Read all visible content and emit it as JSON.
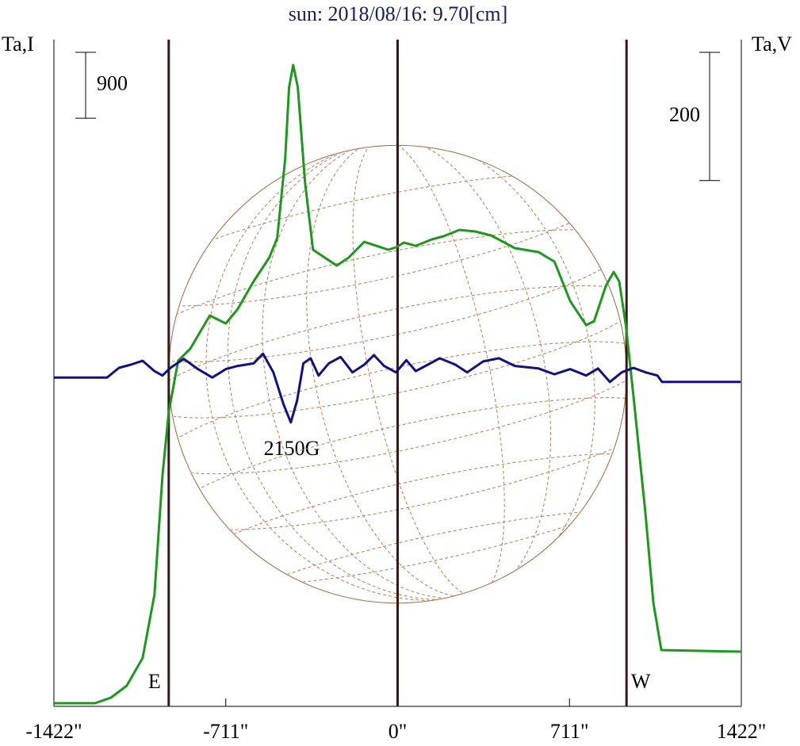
{
  "chart_data": {
    "type": "line",
    "title": "sun: 2018/08/16: 9.70[cm]",
    "xlim": [
      -1422,
      1422
    ],
    "xticks": [
      {
        "value": -1422,
        "label": "-1422\""
      },
      {
        "value": -711,
        "label": "-711\""
      },
      {
        "value": 0,
        "label": "0\""
      },
      {
        "value": 711,
        "label": "711\""
      },
      {
        "value": 1422,
        "label": "1422\""
      }
    ],
    "ylim": [
      0,
      9100
    ],
    "y2lim": [
      -520,
      520
    ],
    "scale_bars": [
      {
        "value": 900,
        "axis": "y"
      },
      {
        "value": 200,
        "axis": "y2"
      }
    ],
    "limbs": [
      {
        "x": -947,
        "label": "E"
      },
      {
        "x": 947,
        "label": "W"
      }
    ],
    "annotation": "2150G",
    "series": [
      {
        "name": "Ta,I",
        "color": "#1a9a1a",
        "x": [
          -1422,
          -1252,
          -1186,
          -1121,
          -1055,
          -1006,
          -973,
          -947,
          -908,
          -858,
          -777,
          -711,
          -662,
          -596,
          -531,
          -498,
          -465,
          -449,
          -432,
          -413,
          -383,
          -350,
          -301,
          -252,
          -203,
          -138,
          -88,
          -39,
          -7,
          26,
          75,
          141,
          190,
          256,
          321,
          387,
          485,
          583,
          649,
          714,
          780,
          813,
          862,
          894,
          917,
          944,
          976,
          1026,
          1058,
          1091,
          1419
        ],
        "values": [
          43,
          43,
          119,
          281,
          660,
          1526,
          3149,
          4014,
          4718,
          4880,
          5334,
          5226,
          5421,
          5800,
          6124,
          6395,
          7477,
          8451,
          8754,
          8451,
          7152,
          6233,
          6124,
          6016,
          6124,
          6340,
          6286,
          6233,
          6265,
          6330,
          6286,
          6373,
          6416,
          6503,
          6481,
          6427,
          6254,
          6200,
          6070,
          5529,
          5204,
          5258,
          5745,
          5929,
          5800,
          5204,
          4231,
          2608,
          1417,
          768,
          747
        ]
      },
      {
        "name": "Ta,V",
        "color": "#10108a",
        "axis": "y2",
        "x": [
          -1422,
          -1252,
          -1202,
          -1153,
          -1104,
          -1055,
          -1006,
          -973,
          -940,
          -885,
          -826,
          -767,
          -711,
          -662,
          -596,
          -557,
          -514,
          -472,
          -442,
          -416,
          -390,
          -360,
          -327,
          -285,
          -236,
          -187,
          -138,
          -98,
          -56,
          -7,
          36,
          75,
          125,
          174,
          239,
          288,
          354,
          419,
          485,
          583,
          649,
          714,
          780,
          829,
          878,
          927,
          976,
          1026,
          1075,
          1094,
          1419
        ],
        "values": [
          -7,
          -7,
          -7,
          8,
          13,
          19,
          3,
          -4,
          8,
          22,
          6,
          -7,
          6,
          11,
          15,
          30,
          1,
          -49,
          -77,
          -43,
          15,
          23,
          -4,
          15,
          25,
          1,
          13,
          28,
          11,
          1,
          20,
          3,
          13,
          23,
          13,
          1,
          18,
          23,
          11,
          7,
          -2,
          6,
          -4,
          7,
          -14,
          1,
          8,
          1,
          -4,
          -14,
          -14
        ]
      }
    ]
  }
}
